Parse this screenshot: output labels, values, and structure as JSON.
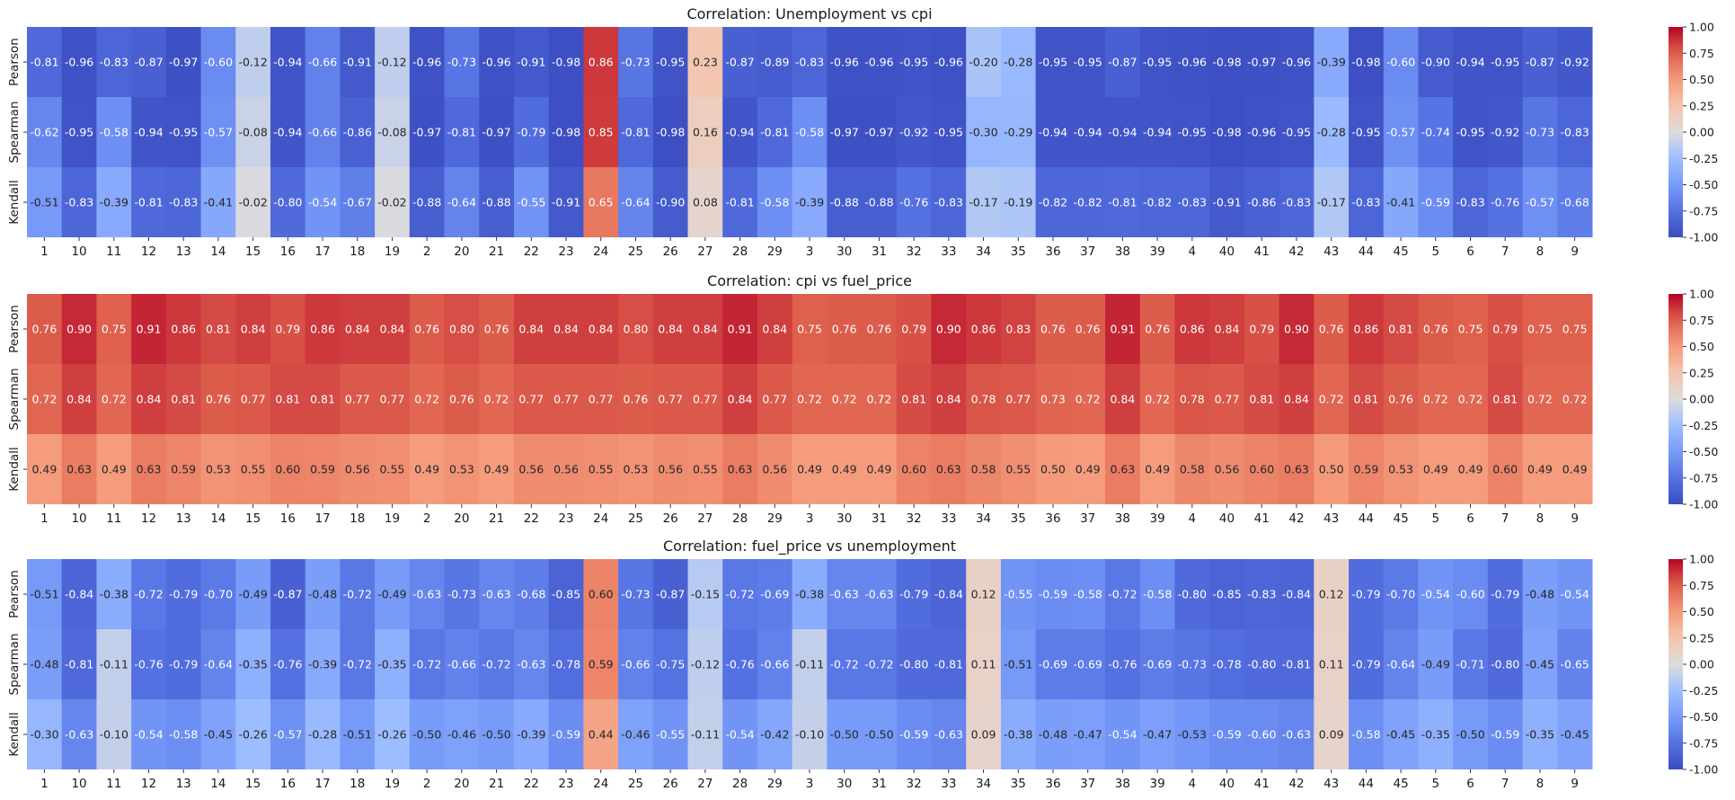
{
  "chart_data": {
    "type": "heatmap",
    "categories": [
      "1",
      "10",
      "11",
      "12",
      "13",
      "14",
      "15",
      "16",
      "17",
      "18",
      "19",
      "2",
      "20",
      "21",
      "22",
      "23",
      "24",
      "25",
      "26",
      "27",
      "28",
      "29",
      "3",
      "30",
      "31",
      "32",
      "33",
      "34",
      "35",
      "36",
      "37",
      "38",
      "39",
      "4",
      "40",
      "41",
      "42",
      "43",
      "44",
      "45",
      "5",
      "6",
      "7",
      "8",
      "9"
    ],
    "rows": [
      "Pearson",
      "Spearman",
      "Kendall"
    ],
    "vmin": -1,
    "vmax": 1,
    "colormap": "coolwarm",
    "colorbar_ticks": [
      "1.00",
      "0.75",
      "0.50",
      "0.25",
      "0.00",
      "-0.25",
      "-0.50",
      "-0.75",
      "-1.00"
    ],
    "panels": [
      {
        "title": "Correlation: Unemployment vs cpi",
        "values": [
          [
            "-0.81",
            "-0.96",
            "-0.83",
            "-0.87",
            "-0.97",
            "-0.60",
            "-0.12",
            "-0.94",
            "-0.66",
            "-0.91",
            "-0.12",
            "-0.96",
            "-0.73",
            "-0.96",
            "-0.91",
            "-0.98",
            "0.86",
            "-0.73",
            "-0.95",
            "0.23",
            "-0.87",
            "-0.89",
            "-0.83",
            "-0.96",
            "-0.96",
            "-0.95",
            "-0.96",
            "-0.20",
            "-0.28",
            "-0.95",
            "-0.95",
            "-0.87",
            "-0.95",
            "-0.96",
            "-0.98",
            "-0.97",
            "-0.96",
            "-0.39",
            "-0.98",
            "-0.60",
            "-0.90",
            "-0.94",
            "-0.95",
            "-0.87",
            "-0.92"
          ],
          [
            "-0.62",
            "-0.95",
            "-0.58",
            "-0.94",
            "-0.95",
            "-0.57",
            "-0.08",
            "-0.94",
            "-0.66",
            "-0.86",
            "-0.08",
            "-0.97",
            "-0.81",
            "-0.97",
            "-0.79",
            "-0.98",
            "0.85",
            "-0.81",
            "-0.98",
            "0.16",
            "-0.94",
            "-0.81",
            "-0.58",
            "-0.97",
            "-0.97",
            "-0.92",
            "-0.95",
            "-0.30",
            "-0.29",
            "-0.94",
            "-0.94",
            "-0.94",
            "-0.94",
            "-0.95",
            "-0.98",
            "-0.96",
            "-0.95",
            "-0.28",
            "-0.95",
            "-0.57",
            "-0.74",
            "-0.95",
            "-0.92",
            "-0.73",
            "-0.83"
          ],
          [
            "-0.51",
            "-0.83",
            "-0.39",
            "-0.81",
            "-0.83",
            "-0.41",
            "-0.02",
            "-0.80",
            "-0.54",
            "-0.67",
            "-0.02",
            "-0.88",
            "-0.64",
            "-0.88",
            "-0.55",
            "-0.91",
            "0.65",
            "-0.64",
            "-0.90",
            "0.08",
            "-0.81",
            "-0.58",
            "-0.39",
            "-0.88",
            "-0.88",
            "-0.76",
            "-0.83",
            "-0.17",
            "-0.19",
            "-0.82",
            "-0.82",
            "-0.81",
            "-0.82",
            "-0.83",
            "-0.91",
            "-0.86",
            "-0.83",
            "-0.17",
            "-0.83",
            "-0.41",
            "-0.59",
            "-0.83",
            "-0.76",
            "-0.57",
            "-0.68"
          ]
        ]
      },
      {
        "title": "Correlation: cpi vs fuel_price",
        "values": [
          [
            "0.76",
            "0.90",
            "0.75",
            "0.91",
            "0.86",
            "0.81",
            "0.84",
            "0.79",
            "0.86",
            "0.84",
            "0.84",
            "0.76",
            "0.80",
            "0.76",
            "0.84",
            "0.84",
            "0.84",
            "0.80",
            "0.84",
            "0.84",
            "0.91",
            "0.84",
            "0.75",
            "0.76",
            "0.76",
            "0.79",
            "0.90",
            "0.86",
            "0.83",
            "0.76",
            "0.76",
            "0.91",
            "0.76",
            "0.86",
            "0.84",
            "0.79",
            "0.90",
            "0.76",
            "0.86",
            "0.81",
            "0.76",
            "0.75",
            "0.79",
            "0.75",
            "0.75"
          ],
          [
            "0.72",
            "0.84",
            "0.72",
            "0.84",
            "0.81",
            "0.76",
            "0.77",
            "0.81",
            "0.81",
            "0.77",
            "0.77",
            "0.72",
            "0.76",
            "0.72",
            "0.77",
            "0.77",
            "0.77",
            "0.76",
            "0.77",
            "0.77",
            "0.84",
            "0.77",
            "0.72",
            "0.72",
            "0.72",
            "0.81",
            "0.84",
            "0.78",
            "0.77",
            "0.73",
            "0.72",
            "0.84",
            "0.72",
            "0.78",
            "0.77",
            "0.81",
            "0.84",
            "0.72",
            "0.81",
            "0.76",
            "0.72",
            "0.72",
            "0.81",
            "0.72",
            "0.72"
          ],
          [
            "0.49",
            "0.63",
            "0.49",
            "0.63",
            "0.59",
            "0.53",
            "0.55",
            "0.60",
            "0.59",
            "0.56",
            "0.55",
            "0.49",
            "0.53",
            "0.49",
            "0.56",
            "0.56",
            "0.55",
            "0.53",
            "0.56",
            "0.55",
            "0.63",
            "0.56",
            "0.49",
            "0.49",
            "0.49",
            "0.60",
            "0.63",
            "0.58",
            "0.55",
            "0.50",
            "0.49",
            "0.63",
            "0.49",
            "0.58",
            "0.56",
            "0.60",
            "0.63",
            "0.50",
            "0.59",
            "0.53",
            "0.49",
            "0.49",
            "0.60",
            "0.49",
            "0.49"
          ]
        ]
      },
      {
        "title": "Correlation: fuel_price vs unemployment",
        "values": [
          [
            "-0.51",
            "-0.84",
            "-0.38",
            "-0.72",
            "-0.79",
            "-0.70",
            "-0.49",
            "-0.87",
            "-0.48",
            "-0.72",
            "-0.49",
            "-0.63",
            "-0.73",
            "-0.63",
            "-0.68",
            "-0.85",
            "0.60",
            "-0.73",
            "-0.87",
            "-0.15",
            "-0.72",
            "-0.69",
            "-0.38",
            "-0.63",
            "-0.63",
            "-0.79",
            "-0.84",
            "0.12",
            "-0.55",
            "-0.59",
            "-0.58",
            "-0.72",
            "-0.58",
            "-0.80",
            "-0.85",
            "-0.83",
            "-0.84",
            "0.12",
            "-0.79",
            "-0.70",
            "-0.54",
            "-0.60",
            "-0.79",
            "-0.48",
            "-0.54"
          ],
          [
            "-0.48",
            "-0.81",
            "-0.11",
            "-0.76",
            "-0.79",
            "-0.64",
            "-0.35",
            "-0.76",
            "-0.39",
            "-0.72",
            "-0.35",
            "-0.72",
            "-0.66",
            "-0.72",
            "-0.63",
            "-0.78",
            "0.59",
            "-0.66",
            "-0.75",
            "-0.12",
            "-0.76",
            "-0.66",
            "-0.11",
            "-0.72",
            "-0.72",
            "-0.80",
            "-0.81",
            "0.11",
            "-0.51",
            "-0.69",
            "-0.69",
            "-0.76",
            "-0.69",
            "-0.73",
            "-0.78",
            "-0.80",
            "-0.81",
            "0.11",
            "-0.79",
            "-0.64",
            "-0.49",
            "-0.71",
            "-0.80",
            "-0.45",
            "-0.65"
          ],
          [
            "-0.30",
            "-0.63",
            "-0.10",
            "-0.54",
            "-0.58",
            "-0.45",
            "-0.26",
            "-0.57",
            "-0.28",
            "-0.51",
            "-0.26",
            "-0.50",
            "-0.46",
            "-0.50",
            "-0.39",
            "-0.59",
            "0.44",
            "-0.46",
            "-0.55",
            "-0.11",
            "-0.54",
            "-0.42",
            "-0.10",
            "-0.50",
            "-0.50",
            "-0.59",
            "-0.63",
            "0.09",
            "-0.38",
            "-0.48",
            "-0.47",
            "-0.54",
            "-0.47",
            "-0.53",
            "-0.59",
            "-0.60",
            "-0.63",
            "0.09",
            "-0.58",
            "-0.45",
            "-0.35",
            "-0.50",
            "-0.59",
            "-0.35",
            "-0.45"
          ]
        ]
      }
    ]
  }
}
